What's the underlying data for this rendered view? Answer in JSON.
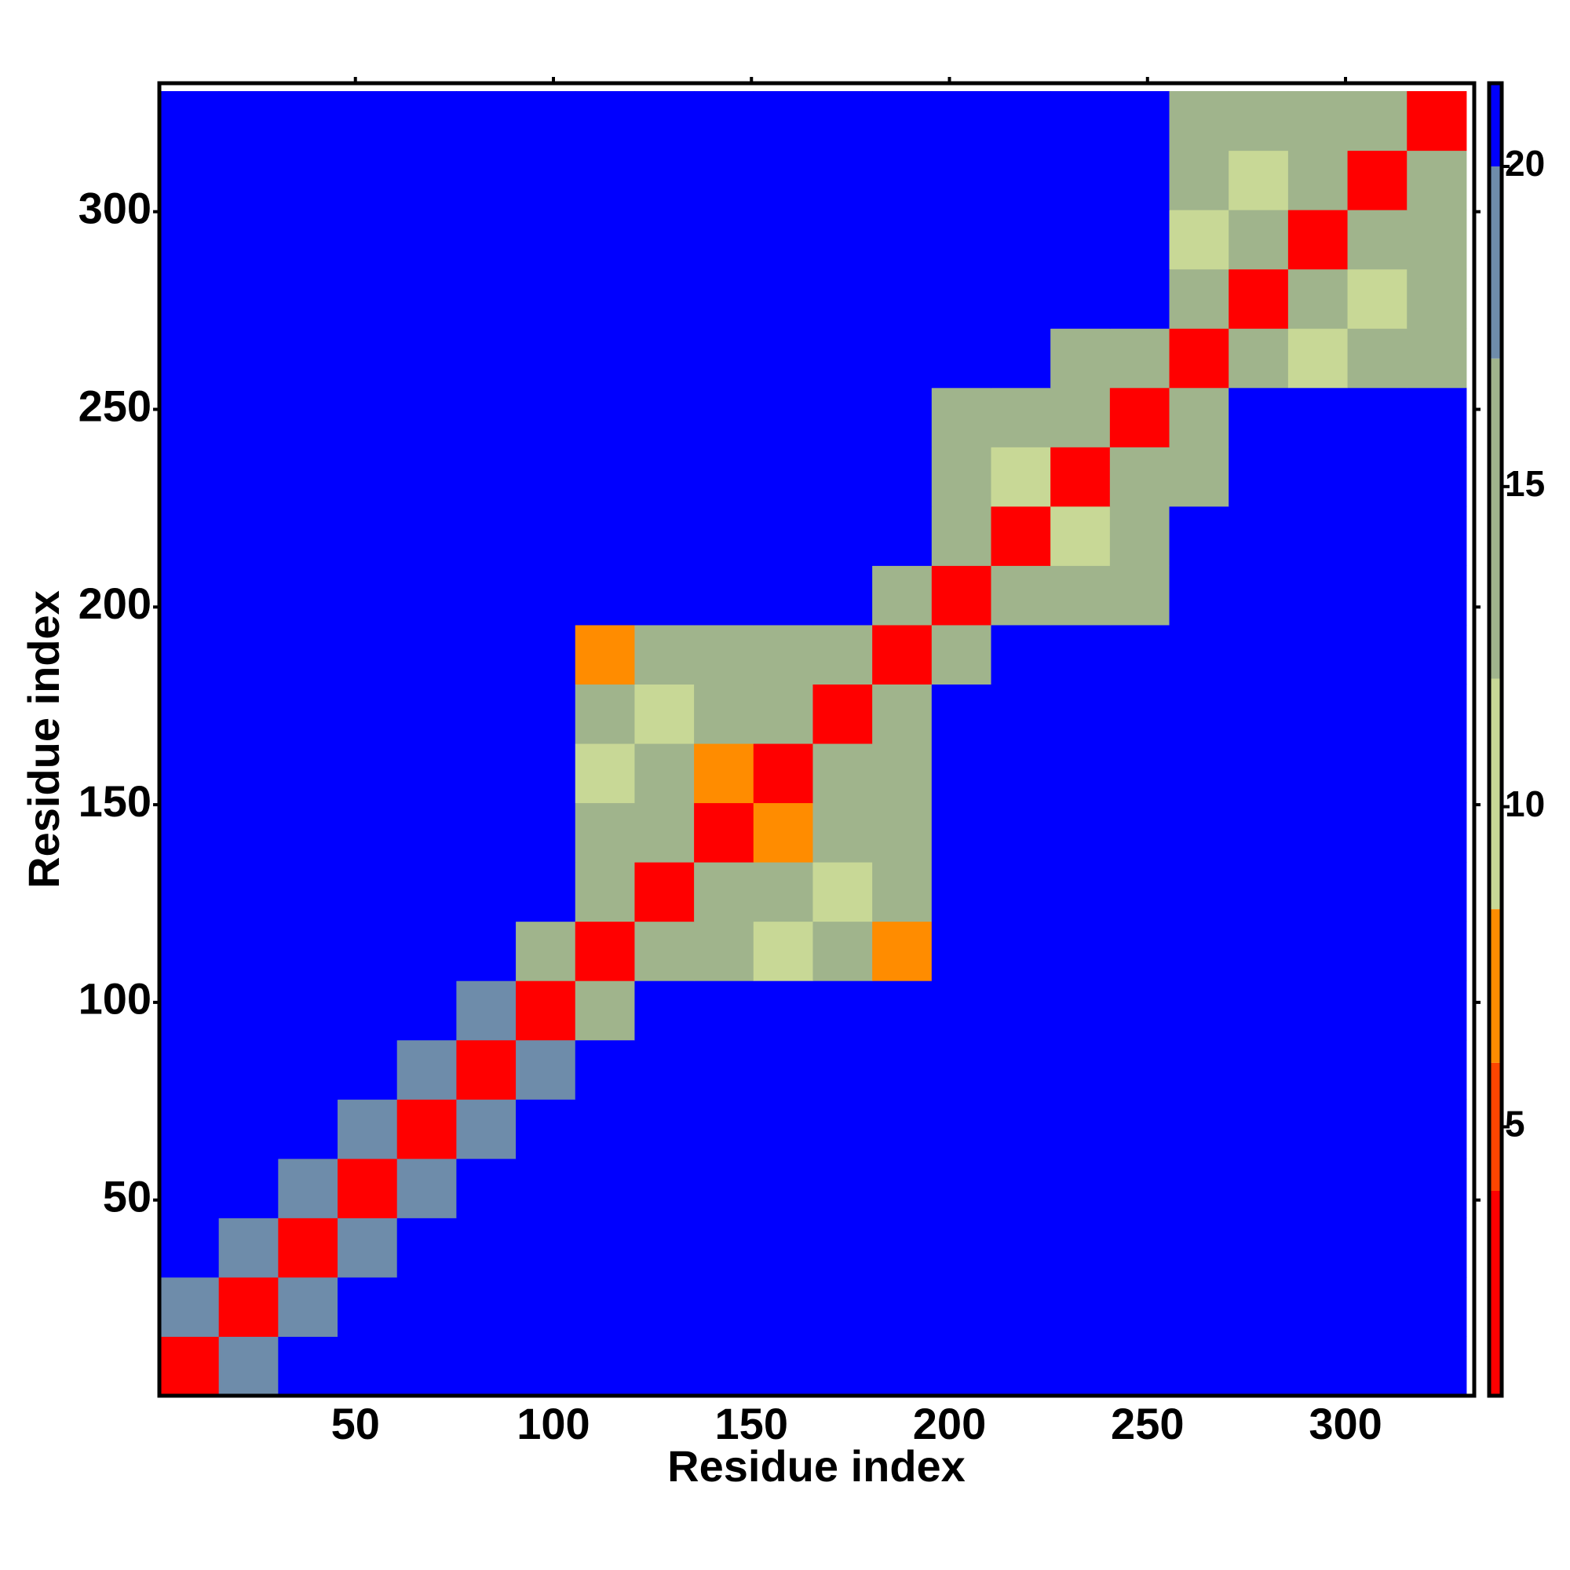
{
  "chart_data": {
    "type": "heatmap",
    "x_label": "Residue index",
    "y_label": "Residue index",
    "x_edges": [
      0.5,
      15.5,
      30.5,
      45.5,
      60.5,
      75.5,
      90.5,
      105.5,
      120.5,
      135.5,
      150.5,
      165.5,
      180.5,
      195.5,
      210.5,
      225.5,
      240.5,
      255.5,
      270.5,
      285.5,
      300.5,
      315.5,
      330.5
    ],
    "y_edges": [
      0.5,
      15.5,
      30.5,
      45.5,
      60.5,
      75.5,
      90.5,
      105.5,
      120.5,
      135.5,
      150.5,
      165.5,
      180.5,
      195.5,
      210.5,
      225.5,
      240.5,
      255.5,
      270.5,
      285.5,
      300.5,
      315.5,
      330.5
    ],
    "z": [
      [
        3,
        18,
        21,
        21,
        21,
        21,
        21,
        21,
        21,
        21,
        21,
        21,
        21,
        21,
        21,
        21,
        21,
        21,
        21,
        21,
        21,
        21
      ],
      [
        18,
        3,
        18,
        21,
        21,
        21,
        21,
        21,
        21,
        21,
        21,
        21,
        21,
        21,
        21,
        21,
        21,
        21,
        21,
        21,
        21,
        21
      ],
      [
        21,
        18,
        3,
        18,
        21,
        21,
        21,
        21,
        21,
        21,
        21,
        21,
        21,
        21,
        21,
        21,
        21,
        21,
        21,
        21,
        21,
        21
      ],
      [
        21,
        21,
        18,
        3,
        18,
        21,
        21,
        21,
        21,
        21,
        21,
        21,
        21,
        21,
        21,
        21,
        21,
        21,
        21,
        21,
        21,
        21
      ],
      [
        21,
        21,
        21,
        18,
        3,
        18,
        21,
        21,
        21,
        21,
        21,
        21,
        21,
        21,
        21,
        21,
        21,
        21,
        21,
        21,
        21,
        21
      ],
      [
        21,
        21,
        21,
        21,
        18,
        3,
        18,
        21,
        21,
        21,
        21,
        21,
        21,
        21,
        21,
        21,
        21,
        21,
        21,
        21,
        21,
        21
      ],
      [
        21,
        21,
        21,
        21,
        21,
        18,
        3,
        14,
        21,
        21,
        21,
        21,
        21,
        21,
        21,
        21,
        21,
        21,
        21,
        21,
        21,
        21
      ],
      [
        21,
        21,
        21,
        21,
        21,
        21,
        14,
        3,
        13,
        13,
        9,
        13,
        8,
        21,
        21,
        21,
        21,
        21,
        21,
        21,
        21,
        21
      ],
      [
        21,
        21,
        21,
        21,
        21,
        21,
        21,
        13,
        3,
        13,
        13,
        11,
        13,
        21,
        21,
        21,
        21,
        21,
        21,
        21,
        21,
        21
      ],
      [
        21,
        21,
        21,
        21,
        21,
        21,
        21,
        13,
        13,
        3,
        6,
        13,
        13,
        21,
        21,
        21,
        21,
        21,
        21,
        21,
        21,
        21
      ],
      [
        21,
        21,
        21,
        21,
        21,
        21,
        21,
        9,
        13,
        6,
        3,
        13,
        13,
        21,
        21,
        21,
        21,
        21,
        21,
        21,
        21,
        21
      ],
      [
        21,
        21,
        21,
        21,
        21,
        21,
        21,
        13,
        11,
        13,
        13,
        3,
        13,
        21,
        21,
        21,
        21,
        21,
        21,
        21,
        21,
        21
      ],
      [
        21,
        21,
        21,
        21,
        21,
        21,
        21,
        8,
        13,
        13,
        13,
        13,
        3,
        12,
        21,
        21,
        21,
        21,
        21,
        21,
        21,
        21
      ],
      [
        21,
        21,
        21,
        21,
        21,
        21,
        21,
        21,
        21,
        21,
        21,
        21,
        12,
        3,
        13,
        13,
        14,
        21,
        21,
        21,
        21,
        21
      ],
      [
        21,
        21,
        21,
        21,
        21,
        21,
        21,
        21,
        21,
        21,
        21,
        21,
        21,
        13,
        3,
        9,
        13,
        21,
        21,
        21,
        21,
        21
      ],
      [
        21,
        21,
        21,
        21,
        21,
        21,
        21,
        21,
        21,
        21,
        21,
        21,
        21,
        13,
        9,
        3,
        13,
        16,
        21,
        21,
        21,
        21
      ],
      [
        21,
        21,
        21,
        21,
        21,
        21,
        21,
        21,
        21,
        21,
        21,
        21,
        21,
        14,
        13,
        13,
        3,
        12,
        21,
        21,
        21,
        21
      ],
      [
        21,
        21,
        21,
        21,
        21,
        21,
        21,
        21,
        21,
        21,
        21,
        21,
        21,
        21,
        21,
        16,
        12,
        3,
        12,
        11,
        12,
        12
      ],
      [
        21,
        21,
        21,
        21,
        21,
        21,
        21,
        21,
        21,
        21,
        21,
        21,
        21,
        21,
        21,
        21,
        21,
        12,
        3,
        12,
        9,
        12
      ],
      [
        21,
        21,
        21,
        21,
        21,
        21,
        21,
        21,
        21,
        21,
        21,
        21,
        21,
        21,
        21,
        21,
        21,
        11,
        12,
        3,
        12,
        12
      ],
      [
        21,
        21,
        21,
        21,
        21,
        21,
        21,
        21,
        21,
        21,
        21,
        21,
        21,
        21,
        21,
        21,
        21,
        12,
        9,
        12,
        3,
        12
      ],
      [
        21,
        21,
        21,
        21,
        21,
        21,
        21,
        21,
        21,
        21,
        21,
        21,
        21,
        21,
        21,
        21,
        21,
        12,
        12,
        12,
        12,
        3
      ]
    ],
    "xlim": [
      0.5,
      332.5
    ],
    "ylim": [
      0.5,
      332.5
    ],
    "xticks": [
      50,
      100,
      150,
      200,
      250,
      300
    ],
    "yticks": [
      50,
      100,
      150,
      200,
      250,
      300
    ],
    "zlim": [
      0.8,
      21.3
    ],
    "zticks": [
      5,
      10,
      15,
      20
    ],
    "colorscale": [
      {
        "value": 0.8,
        "color": "#ff0000"
      },
      {
        "value": 4,
        "color": "#ff4500"
      },
      {
        "value": 6,
        "color": "#ff8c00"
      },
      {
        "value": 8.4,
        "color": "#c8d896"
      },
      {
        "value": 12,
        "color": "#a0b48c"
      },
      {
        "value": 17,
        "color": "#6e8caa"
      },
      {
        "value": 20,
        "color": "#0000ff"
      }
    ]
  }
}
